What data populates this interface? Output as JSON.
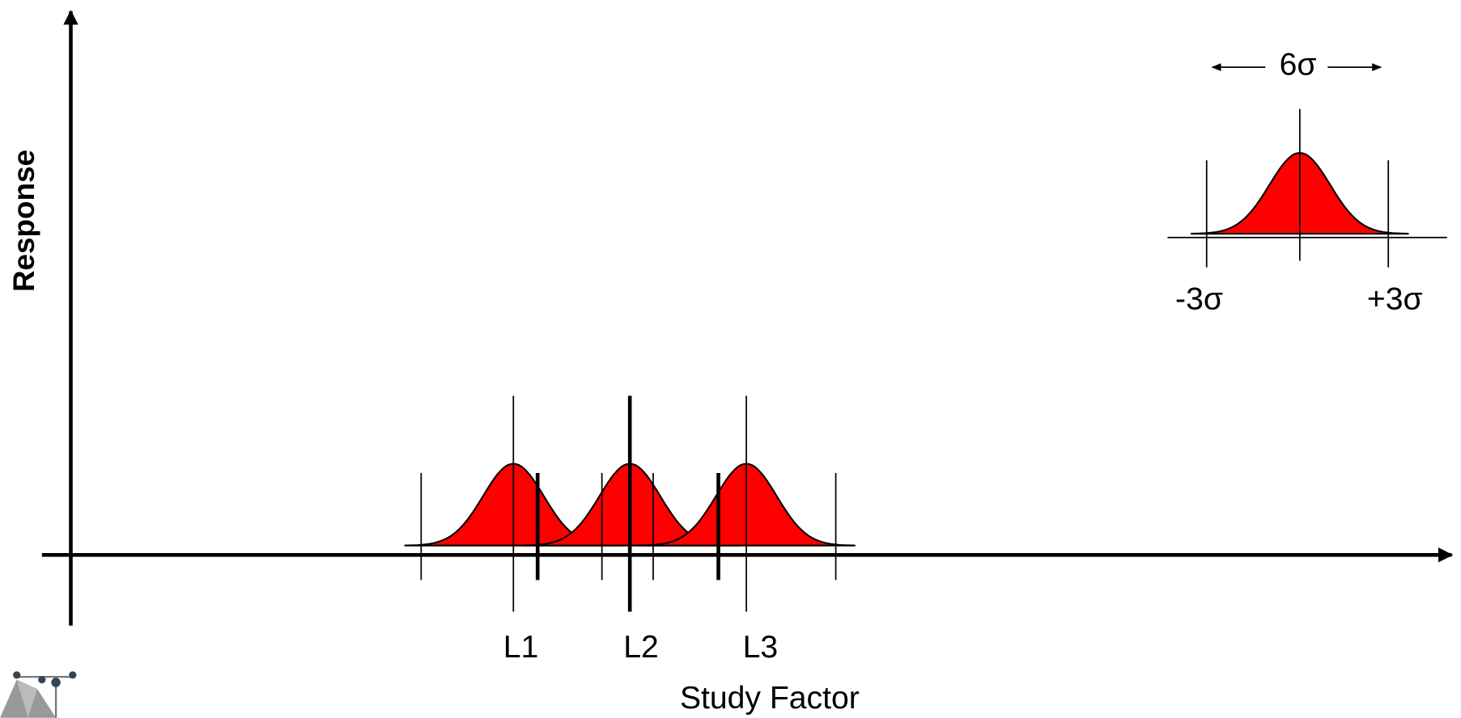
{
  "axes": {
    "y_label": "Response",
    "x_label": "Study Factor"
  },
  "levels": [
    {
      "label": "L1"
    },
    {
      "label": "L2"
    },
    {
      "label": "L3"
    }
  ],
  "legend": {
    "width_label": "6σ",
    "left_label": "-3σ",
    "right_label": "+3σ"
  }
}
